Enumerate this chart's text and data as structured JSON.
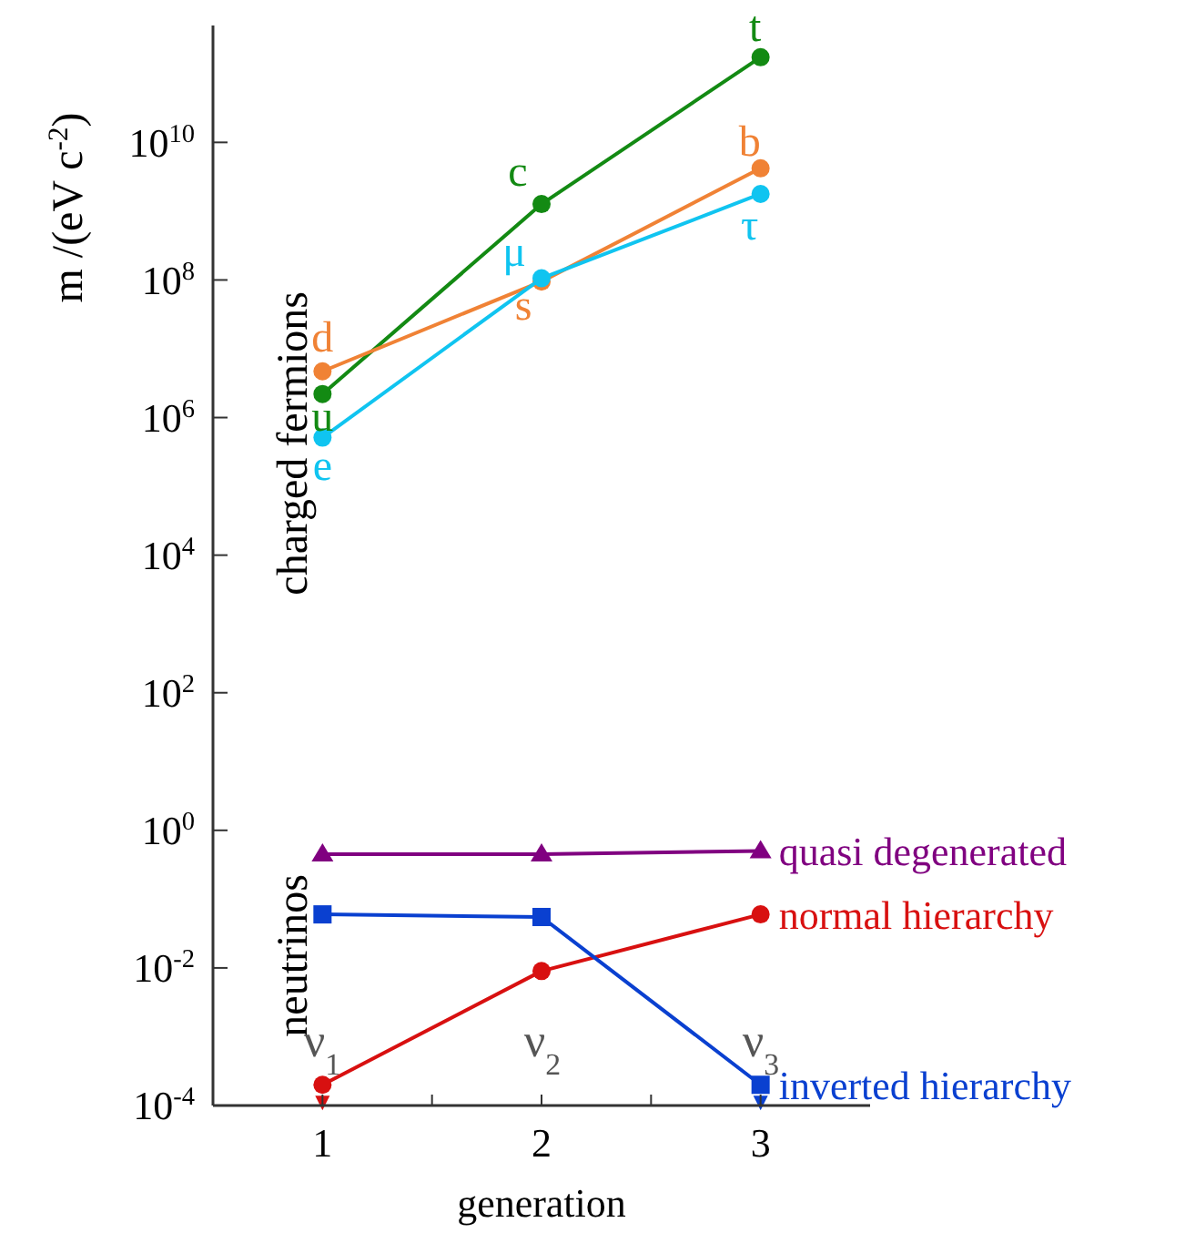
{
  "chart_data": {
    "type": "line",
    "xlabel": "generation",
    "ylabel": "m /(eV c$^{-2}$)",
    "log": "y",
    "grid": false,
    "legend": "right",
    "line_style": "solid",
    "x": [
      1,
      2,
      3
    ],
    "xlim": [
      0.5,
      3.5
    ],
    "xticks": [
      {
        "value": 1,
        "label": "1"
      },
      {
        "value": 1.5,
        "label": null
      },
      {
        "value": 2,
        "label": "2"
      },
      {
        "value": 2.5,
        "label": null
      },
      {
        "value": 3,
        "label": "3"
      }
    ],
    "ylim": [
      0.0001,
      500000000000
    ],
    "yticks": [
      {
        "value": 0.0001,
        "label": "10$^{-4}$"
      },
      {
        "value": 0.01,
        "label": "10$^{-2}$"
      },
      {
        "value": 1,
        "label": "10$^{0}$"
      },
      {
        "value": 100,
        "label": "10$^{2}$"
      },
      {
        "value": 10000,
        "label": "10$^{4}$"
      },
      {
        "value": 1000000,
        "label": "10$^{6}$"
      },
      {
        "value": 100000000,
        "label": "10$^{8}$"
      },
      {
        "value": 10000000000,
        "label": "10$^{10}$"
      }
    ],
    "series": [
      {
        "color": "#138a13",
        "marker": "circle",
        "values": [
          2200000,
          1270000000,
          173000000000
        ]
      },
      {
        "color": "#f08235",
        "marker": "circle",
        "values": [
          4700000,
          95000000,
          4200000000
        ]
      },
      {
        "color": "#10c4f0",
        "marker": "circle",
        "values": [
          511000,
          106000000,
          1780000000
        ]
      },
      {
        "name": "quasi degenerated",
        "color": "#800080",
        "marker": "triangle",
        "values": [
          0.45,
          0.45,
          0.5
        ]
      },
      {
        "name": "normal hierarchy",
        "color": "#d81010",
        "marker": "circle",
        "values": [
          0.0002,
          0.009,
          0.06
        ]
      },
      {
        "name": "inverted hierarchy",
        "color": "#0a40d0",
        "marker": "square",
        "values": [
          0.06,
          0.055,
          0.0002
        ]
      }
    ],
    "annotations": [
      {
        "text": "u",
        "x": 1,
        "y": 2200000
      },
      {
        "text": "d",
        "x": 1,
        "y": 4700000
      },
      {
        "text": "e",
        "x": 1,
        "y": 511000
      },
      {
        "text": "c",
        "x": 2,
        "y": 1270000000
      },
      {
        "text": "s",
        "x": 2,
        "y": 95000000
      },
      {
        "text": "μ",
        "x": 2,
        "y": 106000000
      },
      {
        "text": "t",
        "x": 3,
        "y": 173000000000
      },
      {
        "text": "b",
        "x": 3,
        "y": 4200000000
      },
      {
        "text": "τ",
        "x": 3,
        "y": 1780000000
      },
      "charged fermions",
      "neutrinos",
      "ν$_{1}$",
      "ν$_{2}$",
      "ν$_{3}$"
    ]
  }
}
